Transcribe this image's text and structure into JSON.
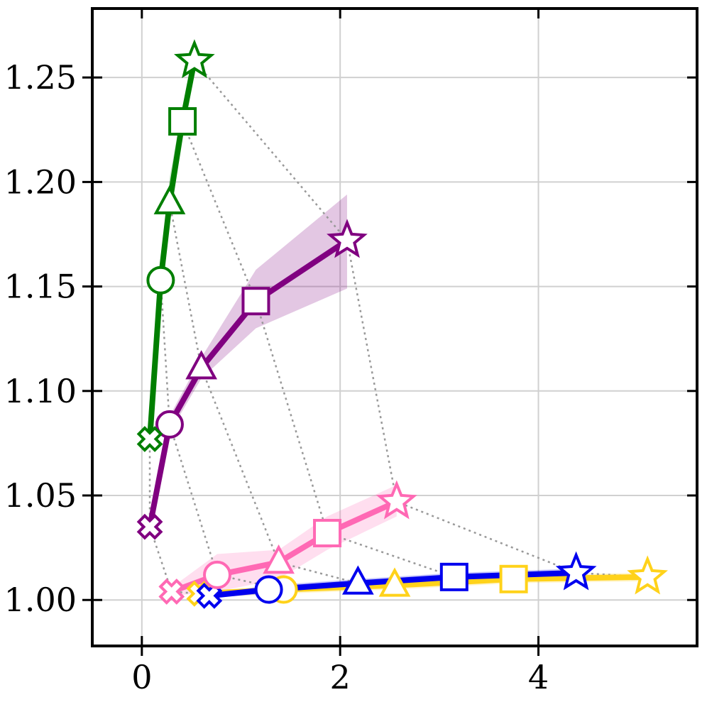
{
  "chart_data": {
    "type": "line",
    "title": "",
    "xlabel": "",
    "ylabel": "",
    "xlim": [
      -0.5,
      5.6
    ],
    "ylim": [
      0.978,
      1.283
    ],
    "xticks": [
      0,
      2,
      4
    ],
    "xtick_labels": [
      "0",
      "2",
      "4"
    ],
    "yticks": [
      1.0,
      1.05,
      1.1,
      1.15,
      1.2,
      1.25
    ],
    "ytick_labels": [
      "1.00",
      "1.05",
      "1.10",
      "1.15",
      "1.20",
      "1.25"
    ],
    "grid": true,
    "markers_order": [
      "x",
      "circle",
      "triangle",
      "square",
      "star"
    ],
    "series": [
      {
        "color": "#ffd21a",
        "points": [
          [
            0.58,
            1.003
          ],
          [
            1.43,
            1.005
          ],
          [
            2.55,
            1.007
          ],
          [
            3.75,
            1.01
          ],
          [
            5.1,
            1.011
          ]
        ],
        "band": [
          [
            0.58,
            1.001,
            1.004
          ],
          [
            1.43,
            1.003,
            1.007
          ],
          [
            2.55,
            1.005,
            1.009
          ],
          [
            3.75,
            1.008,
            1.012
          ],
          [
            5.1,
            1.009,
            1.013
          ]
        ]
      },
      {
        "color": "#0000ee",
        "points": [
          [
            0.68,
            1.002
          ],
          [
            1.28,
            1.005
          ],
          [
            2.18,
            1.008
          ],
          [
            3.15,
            1.011
          ],
          [
            4.38,
            1.013
          ]
        ],
        "band": [
          [
            0.68,
            1.001,
            1.003
          ],
          [
            1.28,
            1.003,
            1.007
          ],
          [
            2.18,
            1.006,
            1.01
          ],
          [
            3.15,
            1.009,
            1.013
          ],
          [
            4.38,
            1.011,
            1.015
          ]
        ]
      },
      {
        "color": "#ff69b4",
        "points": [
          [
            0.3,
            1.004
          ],
          [
            0.76,
            1.012
          ],
          [
            1.38,
            1.018
          ],
          [
            1.87,
            1.032
          ],
          [
            2.57,
            1.047
          ]
        ],
        "band": [
          [
            0.3,
            1.002,
            1.006
          ],
          [
            0.76,
            1.004,
            1.022
          ],
          [
            1.38,
            1.01,
            1.024
          ],
          [
            1.87,
            1.024,
            1.04
          ],
          [
            2.57,
            1.04,
            1.055
          ]
        ]
      },
      {
        "color": "#800080",
        "points": [
          [
            0.08,
            1.035
          ],
          [
            0.28,
            1.084
          ],
          [
            0.6,
            1.111
          ],
          [
            1.15,
            1.143
          ],
          [
            2.07,
            1.172
          ]
        ],
        "band": [
          [
            0.08,
            1.032,
            1.038
          ],
          [
            0.28,
            1.08,
            1.088
          ],
          [
            0.6,
            1.106,
            1.116
          ],
          [
            1.15,
            1.13,
            1.158
          ],
          [
            2.07,
            1.149,
            1.194
          ]
        ]
      },
      {
        "color": "#007f00",
        "points": [
          [
            0.08,
            1.077
          ],
          [
            0.19,
            1.153
          ],
          [
            0.28,
            1.19
          ],
          [
            0.41,
            1.229
          ],
          [
            0.53,
            1.258
          ]
        ],
        "band": [
          [
            0.08,
            1.074,
            1.08
          ],
          [
            0.19,
            1.149,
            1.157
          ],
          [
            0.28,
            1.184,
            1.202
          ],
          [
            0.41,
            1.222,
            1.236
          ],
          [
            0.53,
            1.255,
            1.262
          ]
        ]
      }
    ],
    "connector_color": "#999999"
  }
}
